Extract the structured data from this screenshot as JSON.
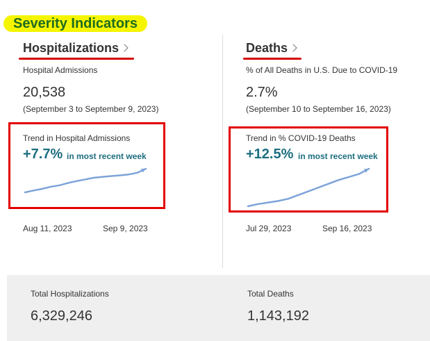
{
  "section": {
    "title": "Severity Indicators",
    "highlight_color": "#f5f500",
    "title_color": "#1f6b1f"
  },
  "hospitalizations": {
    "title": "Hospitalizations",
    "metric_label": "Hospital Admissions",
    "metric_value": "20,538",
    "date_range": "(September 3 to September 9, 2023)",
    "trend_label": "Trend in Hospital Admissions",
    "trend_pct": "+7.7%",
    "trend_suffix": "in most recent week",
    "start_date": "Aug 11, 2023",
    "end_date": "Sep 9, 2023",
    "sparkline": [
      0,
      0.08,
      0.15,
      0.24,
      0.3,
      0.4,
      0.48,
      0.55,
      0.62,
      0.66,
      0.69,
      0.72,
      0.76,
      0.83,
      1.0
    ]
  },
  "deaths": {
    "title": "Deaths",
    "metric_label": "% of All Deaths in U.S. Due to COVID-19",
    "metric_value": "2.7%",
    "date_range": "(September 10 to September 16, 2023)",
    "trend_label": "Trend in % COVID-19 Deaths",
    "trend_pct": "+12.5%",
    "trend_suffix": "in most recent week",
    "start_date": "Jul 29, 2023",
    "end_date": "Sep 16, 2023",
    "sparkline": [
      0,
      0.06,
      0.1,
      0.14,
      0.2,
      0.3,
      0.4,
      0.5,
      0.6,
      0.7,
      0.78,
      0.86,
      1.0
    ]
  },
  "totals": {
    "hospitalizations_label": "Total Hospitalizations",
    "hospitalizations_value": "6,329,246",
    "deaths_label": "Total Deaths",
    "deaths_value": "1,143,192"
  },
  "colors": {
    "trend_text": "#1d6e80",
    "sparkline": "#7da3d9",
    "annotation_red": "#e30000",
    "panel_bg": "#efefef"
  }
}
